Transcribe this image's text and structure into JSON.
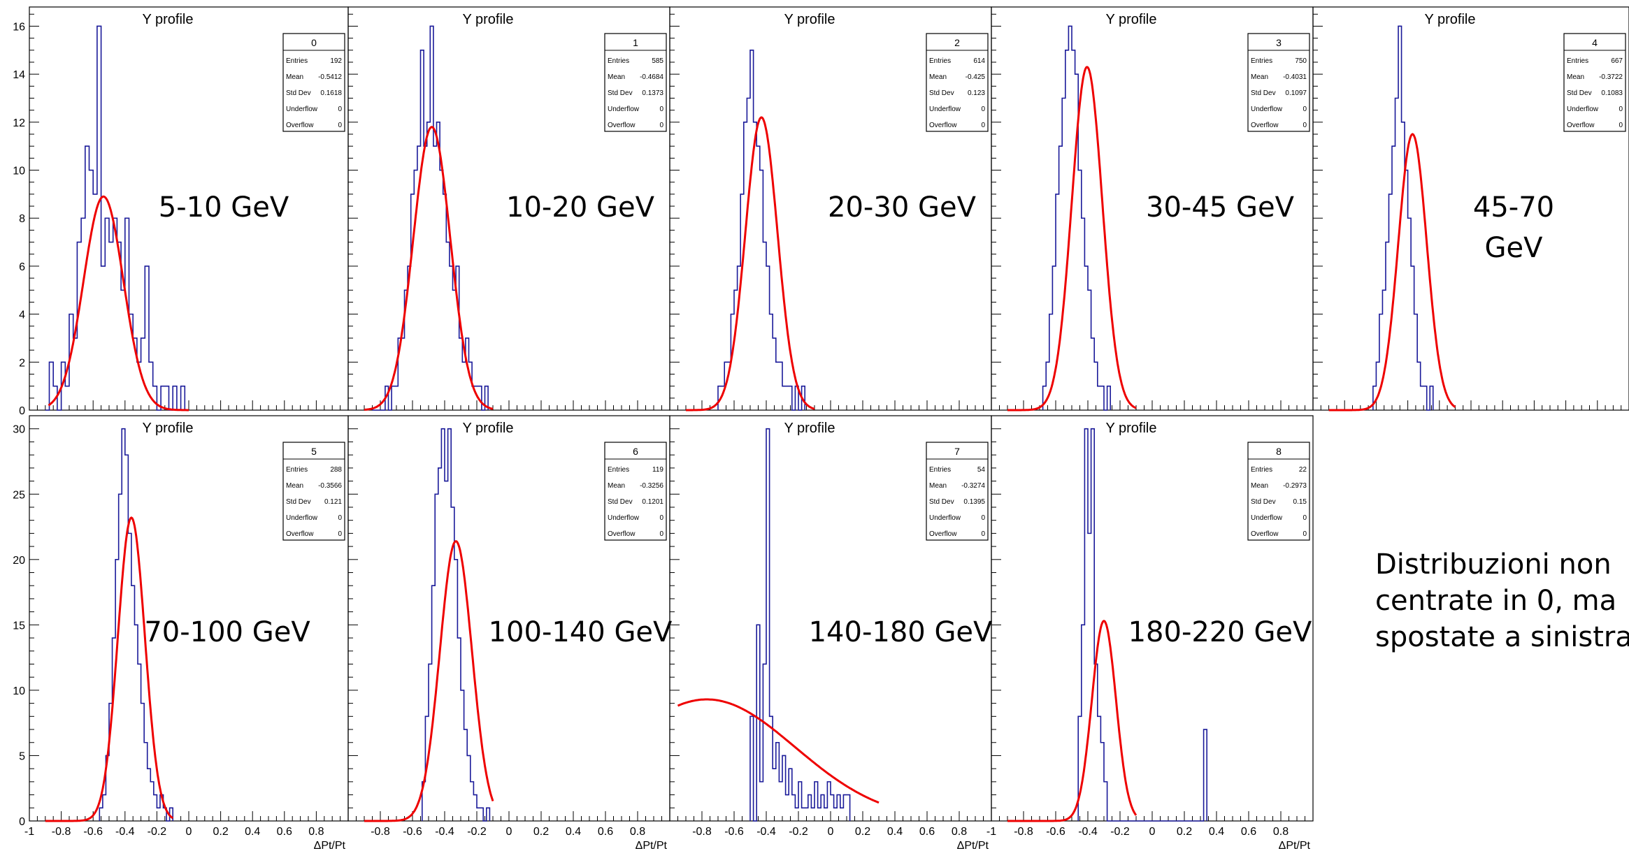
{
  "colors": {
    "histogram": "#1a1a99",
    "fit": "#ee0000",
    "frame": "#000000",
    "background": "#ffffff"
  },
  "note_lines": [
    "Distribuzioni non",
    "centrate in 0, ma",
    "spostate a sinistra"
  ],
  "chart_data": [
    {
      "type": "histogram",
      "title": "Y profile",
      "energy_label_lines": [
        "5-10 GeV"
      ],
      "xlabel": "",
      "xlim": [
        -1,
        1
      ],
      "ylim": [
        0,
        16.8
      ],
      "y_ticks": [
        0,
        2,
        4,
        6,
        8,
        10,
        12,
        14,
        16
      ],
      "x_ticks": [],
      "stats": {
        "name": "0",
        "Entries": "192",
        "Mean": "-0.5412",
        "Std Dev": "0.1618",
        "Underflow": "0",
        "Overflow": "0"
      },
      "bins": {
        "start": -0.9,
        "width": 0.025,
        "counts": [
          0,
          2,
          1,
          0,
          2,
          1,
          4,
          3,
          7,
          8,
          11,
          10,
          9,
          16,
          6,
          8,
          7,
          8,
          7,
          5,
          8,
          4,
          3,
          2,
          3,
          6,
          2,
          1,
          0,
          1,
          1,
          0,
          1,
          0,
          1
        ]
      },
      "fit": {
        "amplitude": 8.9,
        "mean": -0.535,
        "sigma": 0.125,
        "from": -0.88,
        "to": -0.0
      }
    },
    {
      "type": "histogram",
      "title": "Y profile",
      "energy_label_lines": [
        "10-20 GeV"
      ],
      "xlabel": "",
      "xlim": [
        -1,
        1
      ],
      "ylim": [
        0,
        16.8
      ],
      "y_ticks": [],
      "x_ticks": [],
      "stats": {
        "name": "1",
        "Entries": "585",
        "Mean": "-0.4684",
        "Std Dev": "0.1373",
        "Underflow": "0",
        "Overflow": "0"
      },
      "bins": {
        "start": -0.85,
        "width": 0.02,
        "counts": [
          0,
          0,
          0,
          0,
          1,
          0,
          1,
          1,
          3,
          3,
          5,
          6,
          9,
          10,
          11,
          15,
          11,
          12,
          16,
          11,
          12,
          10,
          9,
          7,
          6,
          5,
          6,
          3,
          2,
          3,
          2,
          1,
          1,
          1,
          0,
          1
        ]
      },
      "fit": {
        "amplitude": 11.8,
        "mean": -0.48,
        "sigma": 0.115,
        "from": -0.9,
        "to": -0.1
      }
    },
    {
      "type": "histogram",
      "title": "Y profile",
      "energy_label_lines": [
        "20-30 GeV"
      ],
      "xlabel": "",
      "xlim": [
        -1,
        1
      ],
      "ylim": [
        0,
        16.8
      ],
      "y_ticks": [],
      "x_ticks": [],
      "stats": {
        "name": "2",
        "Entries": "614",
        "Mean": "-0.425",
        "Std Dev": "0.123",
        "Underflow": "0",
        "Overflow": "0"
      },
      "bins": {
        "start": -0.7,
        "width": 0.02,
        "counts": [
          1,
          1,
          2,
          2,
          4,
          5,
          6,
          9,
          12,
          13,
          15,
          12,
          11,
          10,
          7,
          6,
          4,
          3,
          2,
          2,
          1,
          1,
          1,
          0,
          1,
          0,
          1
        ]
      },
      "fit": {
        "amplitude": 12.2,
        "mean": -0.43,
        "sigma": 0.1,
        "from": -0.9,
        "to": -0.1
      }
    },
    {
      "type": "histogram",
      "title": "Y profile",
      "energy_label_lines": [
        "30-45 GeV"
      ],
      "xlabel": "",
      "xlim": [
        -1,
        1
      ],
      "ylim": [
        0,
        16.8
      ],
      "y_ticks": [],
      "x_ticks": [],
      "stats": {
        "name": "3",
        "Entries": "750",
        "Mean": "-0.4031",
        "Std Dev": "0.1097",
        "Underflow": "0",
        "Overflow": "0"
      },
      "bins": {
        "start": -0.68,
        "width": 0.02,
        "counts": [
          1,
          2,
          4,
          6,
          9,
          11,
          13,
          15,
          16,
          15,
          14,
          10,
          8,
          6,
          5,
          3,
          2,
          1,
          1,
          0,
          1
        ]
      },
      "fit": {
        "amplitude": 14.3,
        "mean": -0.405,
        "sigma": 0.095,
        "from": -0.9,
        "to": -0.1
      }
    },
    {
      "type": "histogram",
      "title": "Y profile",
      "energy_label_lines": [
        "45-70",
        "GeV"
      ],
      "xlabel": "",
      "xlim": [
        -1,
        1
      ],
      "ylim": [
        0,
        16.8
      ],
      "y_ticks": [],
      "x_ticks": [],
      "stats": {
        "name": "4",
        "Entries": "667",
        "Mean": "-0.3722",
        "Std Dev": "0.1083",
        "Underflow": "0",
        "Overflow": "0"
      },
      "bins": {
        "start": -0.62,
        "width": 0.02,
        "counts": [
          1,
          2,
          4,
          5,
          7,
          9,
          11,
          13,
          16,
          12,
          10,
          8,
          6,
          4,
          2,
          1,
          1,
          0,
          1
        ]
      },
      "fit": {
        "amplitude": 11.5,
        "mean": -0.37,
        "sigma": 0.09,
        "from": -0.9,
        "to": -0.1
      }
    },
    {
      "type": "histogram",
      "title": "Y profile",
      "energy_label_lines": [
        "70-100 GeV"
      ],
      "xlabel": "ΔPt/Pt",
      "xlim": [
        -1,
        1
      ],
      "ylim": [
        0,
        31
      ],
      "y_ticks": [
        0,
        5,
        10,
        15,
        20,
        25,
        30
      ],
      "x_ticks": [
        -1,
        -0.8,
        -0.6,
        -0.4,
        -0.2,
        0,
        0.2,
        0.4,
        0.6,
        0.8
      ],
      "stats": {
        "name": "5",
        "Entries": "288",
        "Mean": "-0.3566",
        "Std Dev": "0.121",
        "Underflow": "0",
        "Overflow": "0"
      },
      "bins": {
        "start": -0.56,
        "width": 0.02,
        "counts": [
          1,
          2,
          5,
          9,
          14,
          20,
          25,
          30,
          28,
          22,
          18,
          15,
          12,
          9,
          6,
          4,
          3,
          2,
          1,
          2,
          1,
          0,
          1
        ]
      },
      "fit": {
        "amplitude": 23.2,
        "mean": -0.36,
        "sigma": 0.085,
        "from": -0.9,
        "to": -0.1
      }
    },
    {
      "type": "histogram",
      "title": "Y profile",
      "energy_label_lines": [
        "100-140 GeV"
      ],
      "xlabel": "ΔPt/Pt",
      "xlim": [
        -1,
        1
      ],
      "ylim": [
        0,
        31
      ],
      "y_ticks": [],
      "x_ticks": [
        -0.8,
        -0.6,
        -0.4,
        -0.2,
        0,
        0.2,
        0.4,
        0.6,
        0.8
      ],
      "stats": {
        "name": "6",
        "Entries": "119",
        "Mean": "-0.3256",
        "Std Dev": "0.1201",
        "Underflow": "0",
        "Overflow": "0"
      },
      "bins": {
        "start": -0.54,
        "width": 0.02,
        "counts": [
          3,
          8,
          12,
          18,
          25,
          27,
          30,
          26,
          30,
          24,
          20,
          14,
          10,
          7,
          5,
          3,
          2,
          1,
          1,
          0,
          1
        ]
      },
      "fit": {
        "amplitude": 21.4,
        "mean": -0.33,
        "sigma": 0.1,
        "from": -0.9,
        "to": -0.1
      }
    },
    {
      "type": "histogram",
      "title": "Y profile",
      "energy_label_lines": [
        "140-180 GeV"
      ],
      "xlabel": "ΔPt/Pt",
      "xlim": [
        -1,
        1
      ],
      "ylim": [
        0,
        31
      ],
      "y_ticks": [],
      "x_ticks": [
        -0.8,
        -0.6,
        -0.4,
        -0.2,
        0,
        0.2,
        0.4,
        0.6,
        0.8
      ],
      "stats": {
        "name": "7",
        "Entries": "54",
        "Mean": "-0.3274",
        "Std Dev": "0.1395",
        "Underflow": "0",
        "Overflow": "0"
      },
      "bins": {
        "start": -0.5,
        "width": 0.02,
        "counts": [
          8,
          0,
          15,
          3,
          12,
          30,
          8,
          4,
          6,
          3,
          5,
          2,
          4,
          2,
          1,
          3,
          1,
          1,
          2,
          1,
          3,
          1,
          2,
          1,
          3,
          2,
          1,
          2,
          1,
          2,
          2
        ]
      },
      "fit": {
        "amplitude": 9.3,
        "mean": -0.77,
        "sigma": 0.55,
        "from": -0.95,
        "to": 0.3
      }
    },
    {
      "type": "histogram",
      "title": "Y profile",
      "energy_label_lines": [
        "180-220 GeV"
      ],
      "xlabel": "ΔPt/Pt",
      "xlim": [
        -1,
        1
      ],
      "ylim": [
        0,
        31
      ],
      "y_ticks": [],
      "x_ticks": [
        -1,
        -0.8,
        -0.6,
        -0.4,
        -0.2,
        0,
        0.2,
        0.4,
        0.6,
        0.8
      ],
      "stats": {
        "name": "8",
        "Entries": "22",
        "Mean": "-0.2973",
        "Std Dev": "0.15",
        "Underflow": "0",
        "Overflow": "0"
      },
      "bins": {
        "start": -0.46,
        "width": 0.02,
        "counts": [
          8,
          15,
          30,
          22,
          30,
          12,
          8,
          6,
          3,
          0,
          0,
          0,
          0,
          0,
          0,
          0,
          0,
          0,
          0,
          0,
          0,
          0,
          0,
          0,
          0,
          0,
          0,
          0,
          0,
          0,
          0,
          0,
          0,
          0,
          0,
          0,
          0,
          0,
          0,
          7
        ]
      },
      "fit": {
        "amplitude": 15.3,
        "mean": -0.3,
        "sigma": 0.075,
        "from": -0.9,
        "to": -0.1
      }
    }
  ]
}
